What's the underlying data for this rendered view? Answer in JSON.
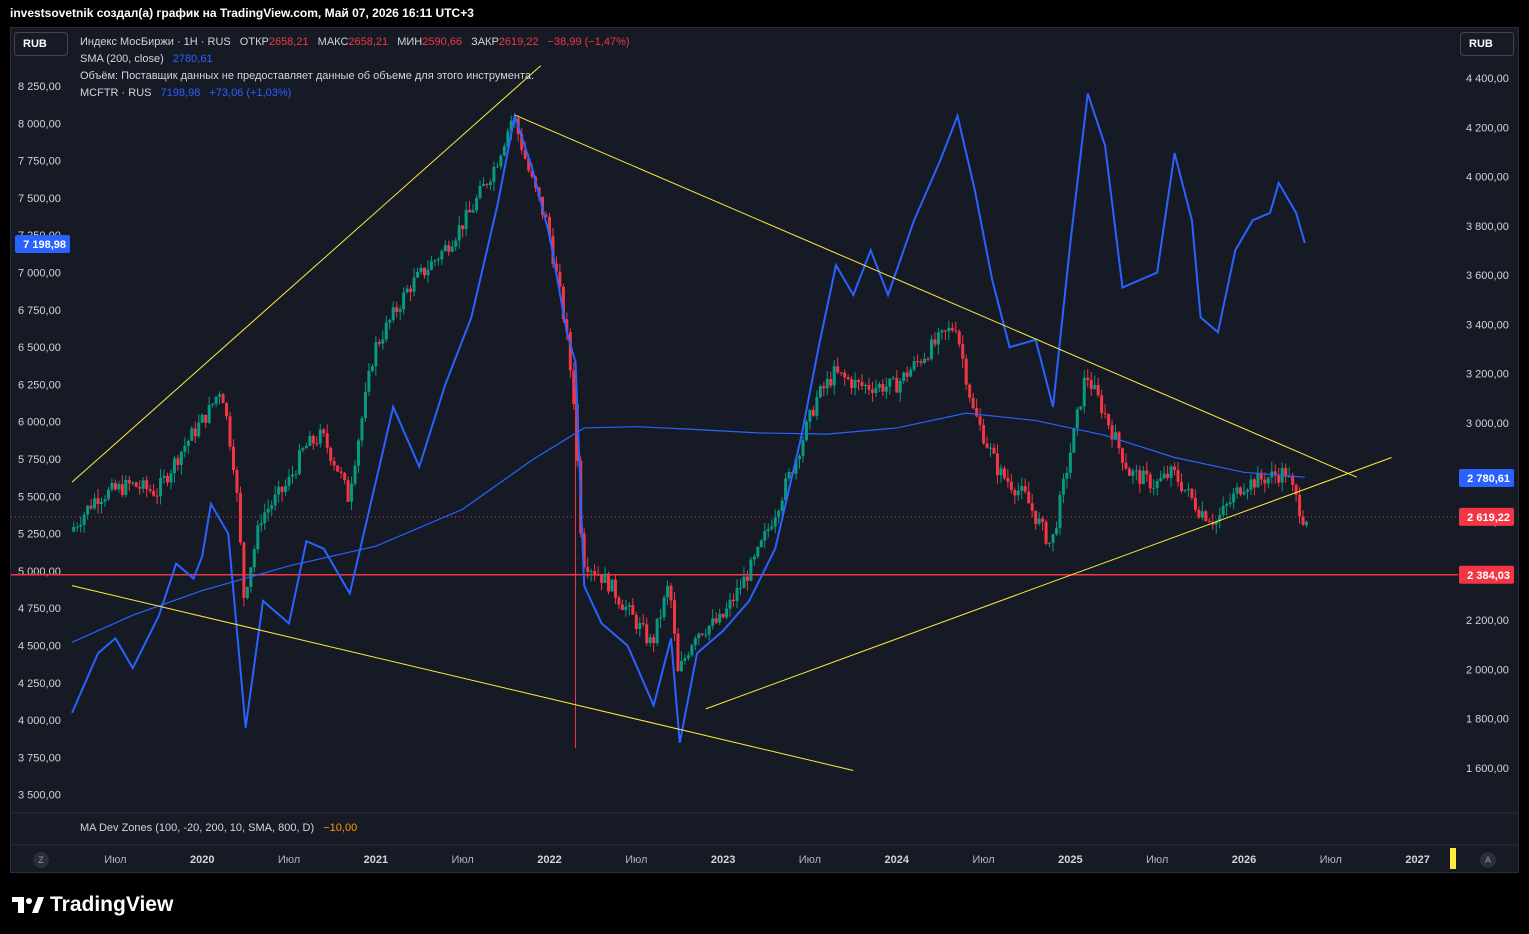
{
  "header": "investsovetnik создал(а) график на TradingView.com, Май 07, 2026 16:11 UTC+3",
  "currency_left": "RUB",
  "currency_right": "RUB",
  "legend": {
    "line1_title": "Индекс МосБиржи · 1Н · RUS",
    "open_label": "ОТКР",
    "open_val": "2658,21",
    "high_label": "МАКС",
    "high_val": "2658,21",
    "low_label": "МИН",
    "low_val": "2590,66",
    "close_label": "ЗАКР",
    "close_val": "2619,22",
    "change": "−38,99 (−1,47%)",
    "sma_label": "SMA (200, close)",
    "sma_val": "2780,61",
    "volume_note": "Объём: Поставщик данных не предоставляет данные об объеме для этого инструмента.",
    "mcftr_label": "MCFTR · RUS",
    "mcftr_val": "7198,98",
    "mcftr_change": "+73,06 (+1,03%)",
    "madev": "MA Dev Zones (100, -20, 200, 10, SMA, 800, D)",
    "madev_val": "−10,00"
  },
  "logo_text": "TradingView",
  "btn_z": "Z",
  "btn_a": "A",
  "colors": {
    "bg": "#161a25",
    "up": "#089981",
    "down": "#f23645",
    "mcftr": "#2962ff",
    "trend": "#ffeb3b",
    "support": "#f23645"
  },
  "chart_data": {
    "type": "line",
    "left_axis": {
      "ticks": [
        "8 250,00",
        "8 000,00",
        "7 750,00",
        "7 500,00",
        "7 250,00",
        "7 000,00",
        "6 750,00",
        "6 500,00",
        "6 250,00",
        "6 000,00",
        "5 750,00",
        "5 500,00",
        "5 250,00",
        "5 000,00",
        "4 750,00",
        "4 500,00",
        "4 250,00",
        "4 000,00",
        "3 750,00",
        "3 500,00"
      ],
      "range": [
        3400,
        8400
      ]
    },
    "right_axis": {
      "ticks": [
        "4 400,00",
        "4 200,00",
        "4 000,00",
        "3 800,00",
        "3 600,00",
        "3 400,00",
        "3 200,00",
        "3 000,00",
        "2 800,00",
        "2 600,00",
        "2 400,00",
        "2 200,00",
        "2 000,00",
        "1 800,00",
        "1 600,00"
      ],
      "range": [
        1400,
        4500
      ]
    },
    "x_labels": [
      "Июл",
      "2020",
      "Июл",
      "2021",
      "Июл",
      "2022",
      "Июл",
      "2023",
      "Июл",
      "2024",
      "Июл",
      "2025",
      "Июл",
      "2026",
      "Июл",
      "2027"
    ],
    "badges": {
      "mcftr": "7 198,98",
      "sma": "2 780,61",
      "close": "2 619,22",
      "support": "2 384,03"
    },
    "imoex": [
      {
        "t": 2019.25,
        "v": 2560
      },
      {
        "t": 2019.4,
        "v": 2700
      },
      {
        "t": 2019.6,
        "v": 2750
      },
      {
        "t": 2019.75,
        "v": 2720
      },
      {
        "t": 2019.9,
        "v": 2900
      },
      {
        "t": 2020.05,
        "v": 3050
      },
      {
        "t": 2020.12,
        "v": 3150
      },
      {
        "t": 2020.2,
        "v": 2800
      },
      {
        "t": 2020.25,
        "v": 2300
      },
      {
        "t": 2020.35,
        "v": 2620
      },
      {
        "t": 2020.5,
        "v": 2750
      },
      {
        "t": 2020.6,
        "v": 2900
      },
      {
        "t": 2020.7,
        "v": 2950
      },
      {
        "t": 2020.8,
        "v": 2800
      },
      {
        "t": 2020.85,
        "v": 2700
      },
      {
        "t": 2021.0,
        "v": 3300
      },
      {
        "t": 2021.2,
        "v": 3550
      },
      {
        "t": 2021.4,
        "v": 3700
      },
      {
        "t": 2021.55,
        "v": 3850
      },
      {
        "t": 2021.7,
        "v": 4050
      },
      {
        "t": 2021.8,
        "v": 4250
      },
      {
        "t": 2021.9,
        "v": 4000
      },
      {
        "t": 2022.0,
        "v": 3800
      },
      {
        "t": 2022.1,
        "v": 3400
      },
      {
        "t": 2022.15,
        "v": 3100
      },
      {
        "t": 2022.2,
        "v": 2450
      },
      {
        "t": 2022.35,
        "v": 2350
      },
      {
        "t": 2022.5,
        "v": 2200
      },
      {
        "t": 2022.6,
        "v": 2100
      },
      {
        "t": 2022.7,
        "v": 2350
      },
      {
        "t": 2022.75,
        "v": 1980
      },
      {
        "t": 2022.85,
        "v": 2150
      },
      {
        "t": 2023.0,
        "v": 2200
      },
      {
        "t": 2023.2,
        "v": 2450
      },
      {
        "t": 2023.4,
        "v": 2800
      },
      {
        "t": 2023.55,
        "v": 3100
      },
      {
        "t": 2023.65,
        "v": 3200
      },
      {
        "t": 2023.8,
        "v": 3150
      },
      {
        "t": 2024.0,
        "v": 3150
      },
      {
        "t": 2024.2,
        "v": 3300
      },
      {
        "t": 2024.35,
        "v": 3400
      },
      {
        "t": 2024.45,
        "v": 3050
      },
      {
        "t": 2024.6,
        "v": 2800
      },
      {
        "t": 2024.75,
        "v": 2700
      },
      {
        "t": 2024.9,
        "v": 2500
      },
      {
        "t": 2025.0,
        "v": 2850
      },
      {
        "t": 2025.1,
        "v": 3200
      },
      {
        "t": 2025.2,
        "v": 3050
      },
      {
        "t": 2025.35,
        "v": 2800
      },
      {
        "t": 2025.5,
        "v": 2750
      },
      {
        "t": 2025.6,
        "v": 2800
      },
      {
        "t": 2025.75,
        "v": 2650
      },
      {
        "t": 2025.85,
        "v": 2600
      },
      {
        "t": 2026.0,
        "v": 2750
      },
      {
        "t": 2026.15,
        "v": 2780
      },
      {
        "t": 2026.25,
        "v": 2800
      },
      {
        "t": 2026.35,
        "v": 2619
      }
    ],
    "mcftr": [
      {
        "t": 2019.25,
        "v": 4050
      },
      {
        "t": 2019.4,
        "v": 4450
      },
      {
        "t": 2019.5,
        "v": 4550
      },
      {
        "t": 2019.6,
        "v": 4350
      },
      {
        "t": 2019.75,
        "v": 4700
      },
      {
        "t": 2019.85,
        "v": 5050
      },
      {
        "t": 2019.95,
        "v": 4950
      },
      {
        "t": 2020.0,
        "v": 5100
      },
      {
        "t": 2020.05,
        "v": 5450
      },
      {
        "t": 2020.15,
        "v": 5250
      },
      {
        "t": 2020.25,
        "v": 3950
      },
      {
        "t": 2020.35,
        "v": 4800
      },
      {
        "t": 2020.5,
        "v": 4650
      },
      {
        "t": 2020.6,
        "v": 5200
      },
      {
        "t": 2020.7,
        "v": 5150
      },
      {
        "t": 2020.8,
        "v": 4950
      },
      {
        "t": 2020.85,
        "v": 4850
      },
      {
        "t": 2021.0,
        "v": 5600
      },
      {
        "t": 2021.1,
        "v": 6100
      },
      {
        "t": 2021.25,
        "v": 5700
      },
      {
        "t": 2021.4,
        "v": 6250
      },
      {
        "t": 2021.55,
        "v": 6700
      },
      {
        "t": 2021.7,
        "v": 7450
      },
      {
        "t": 2021.8,
        "v": 8050
      },
      {
        "t": 2021.9,
        "v": 7700
      },
      {
        "t": 2022.0,
        "v": 7250
      },
      {
        "t": 2022.1,
        "v": 6600
      },
      {
        "t": 2022.15,
        "v": 6400
      },
      {
        "t": 2022.2,
        "v": 4900
      },
      {
        "t": 2022.3,
        "v": 4650
      },
      {
        "t": 2022.45,
        "v": 4500
      },
      {
        "t": 2022.6,
        "v": 4100
      },
      {
        "t": 2022.7,
        "v": 4550
      },
      {
        "t": 2022.75,
        "v": 3850
      },
      {
        "t": 2022.85,
        "v": 4450
      },
      {
        "t": 2023.0,
        "v": 4600
      },
      {
        "t": 2023.15,
        "v": 4800
      },
      {
        "t": 2023.3,
        "v": 5150
      },
      {
        "t": 2023.45,
        "v": 5900
      },
      {
        "t": 2023.55,
        "v": 6500
      },
      {
        "t": 2023.65,
        "v": 7050
      },
      {
        "t": 2023.75,
        "v": 6850
      },
      {
        "t": 2023.85,
        "v": 7150
      },
      {
        "t": 2023.95,
        "v": 6850
      },
      {
        "t": 2024.1,
        "v": 7350
      },
      {
        "t": 2024.25,
        "v": 7750
      },
      {
        "t": 2024.35,
        "v": 8050
      },
      {
        "t": 2024.45,
        "v": 7550
      },
      {
        "t": 2024.55,
        "v": 6950
      },
      {
        "t": 2024.65,
        "v": 6500
      },
      {
        "t": 2024.8,
        "v": 6550
      },
      {
        "t": 2024.9,
        "v": 6100
      },
      {
        "t": 2025.0,
        "v": 7200
      },
      {
        "t": 2025.1,
        "v": 8200
      },
      {
        "t": 2025.2,
        "v": 7850
      },
      {
        "t": 2025.3,
        "v": 6900
      },
      {
        "t": 2025.4,
        "v": 6950
      },
      {
        "t": 2025.5,
        "v": 7000
      },
      {
        "t": 2025.6,
        "v": 7800
      },
      {
        "t": 2025.7,
        "v": 7350
      },
      {
        "t": 2025.75,
        "v": 6700
      },
      {
        "t": 2025.85,
        "v": 6600
      },
      {
        "t": 2025.95,
        "v": 7150
      },
      {
        "t": 2026.05,
        "v": 7350
      },
      {
        "t": 2026.15,
        "v": 7400
      },
      {
        "t": 2026.2,
        "v": 7600
      },
      {
        "t": 2026.3,
        "v": 7400
      },
      {
        "t": 2026.35,
        "v": 7199
      }
    ],
    "sma200": [
      {
        "t": 2019.25,
        "v": 2110
      },
      {
        "t": 2019.6,
        "v": 2220
      },
      {
        "t": 2020.0,
        "v": 2320
      },
      {
        "t": 2020.5,
        "v": 2420
      },
      {
        "t": 2021.0,
        "v": 2500
      },
      {
        "t": 2021.5,
        "v": 2650
      },
      {
        "t": 2021.9,
        "v": 2850
      },
      {
        "t": 2022.2,
        "v": 2980
      },
      {
        "t": 2022.5,
        "v": 2985
      },
      {
        "t": 2022.8,
        "v": 2975
      },
      {
        "t": 2023.2,
        "v": 2960
      },
      {
        "t": 2023.6,
        "v": 2955
      },
      {
        "t": 2024.0,
        "v": 2980
      },
      {
        "t": 2024.4,
        "v": 3040
      },
      {
        "t": 2024.8,
        "v": 3010
      },
      {
        "t": 2025.2,
        "v": 2950
      },
      {
        "t": 2025.6,
        "v": 2860
      },
      {
        "t": 2026.0,
        "v": 2800
      },
      {
        "t": 2026.35,
        "v": 2780
      }
    ],
    "trendlines": [
      {
        "a": {
          "t": 2019.25,
          "v": 2760
        },
        "b": {
          "t": 2021.95,
          "v": 4450
        }
      },
      {
        "a": {
          "t": 2021.8,
          "v": 4250
        },
        "b": {
          "t": 2026.65,
          "v": 2780
        }
      },
      {
        "a": {
          "t": 2019.25,
          "v": 2340
        },
        "b": {
          "t": 2023.75,
          "v": 1590
        }
      },
      {
        "a": {
          "t": 2022.9,
          "v": 1840
        },
        "b": {
          "t": 2026.85,
          "v": 2860
        }
      }
    ],
    "support_level": 2384.03
  }
}
